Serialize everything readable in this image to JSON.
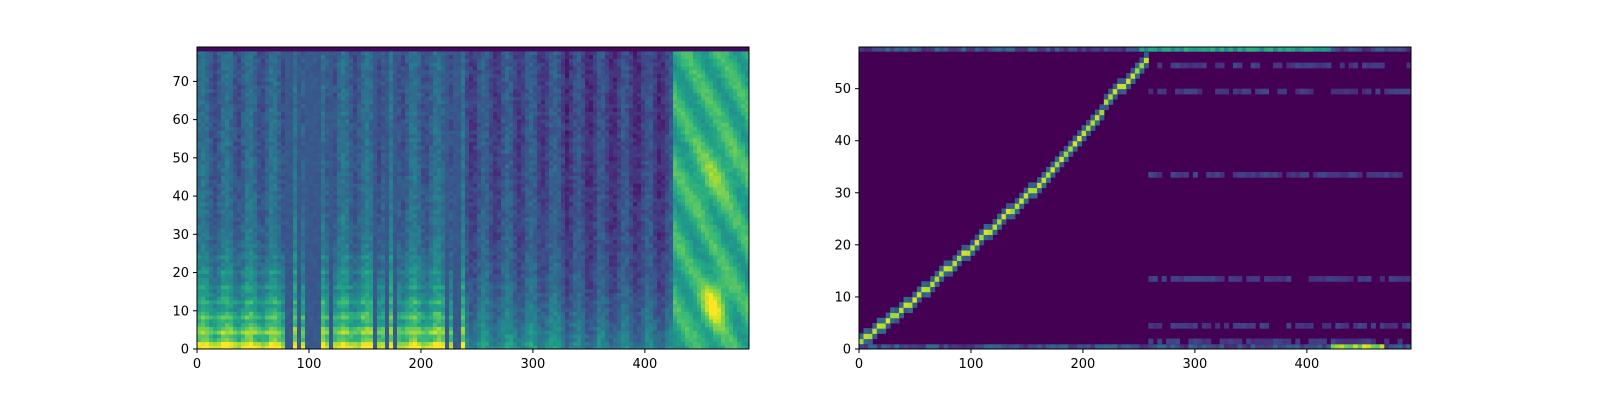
{
  "chart_data": [
    {
      "type": "heatmap",
      "title": "",
      "xlabel": "",
      "ylabel": "",
      "xlim": [
        0,
        493
      ],
      "ylim": [
        0,
        79
      ],
      "x_ticks": [
        0,
        100,
        200,
        300,
        400
      ],
      "y_ticks": [
        0,
        10,
        20,
        30,
        40,
        50,
        60,
        70
      ],
      "colormap": "viridis",
      "description_of_content": "mel spectrogram",
      "speech_segment_end_x": 425,
      "vertical_gaps_x": [
        82,
        90,
        100,
        107,
        119,
        160,
        170,
        178,
        222,
        232
      ],
      "tail_region": {
        "x_start": 425,
        "x_end": 493,
        "bright_peak_x": 462,
        "bright_peak_y": 12
      },
      "grid": false,
      "legend": "none"
    },
    {
      "type": "heatmap",
      "title": "",
      "xlabel": "",
      "ylabel": "",
      "xlim": [
        0,
        493
      ],
      "ylim": [
        0,
        58
      ],
      "x_ticks": [
        0,
        100,
        200,
        300,
        400
      ],
      "y_ticks": [
        0,
        10,
        20,
        30,
        40,
        50
      ],
      "colormap": "viridis",
      "description_of_content": "attention alignment",
      "alignment_path": [
        [
          0,
          1
        ],
        [
          10,
          2
        ],
        [
          20,
          4
        ],
        [
          50,
          9
        ],
        [
          100,
          19
        ],
        [
          130,
          25
        ],
        [
          150,
          29
        ],
        [
          160,
          31
        ],
        [
          200,
          41
        ],
        [
          230,
          49
        ],
        [
          258,
          55
        ]
      ],
      "grid": false,
      "legend": "none"
    }
  ],
  "colors": {
    "viridis_low": "#440154",
    "viridis_mid": "#21918c",
    "viridis_high": "#fde725",
    "axis": "#000000",
    "background": "#ffffff"
  }
}
